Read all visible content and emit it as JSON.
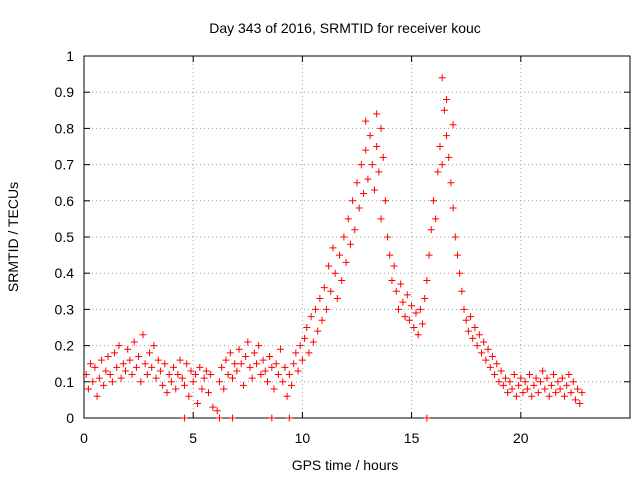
{
  "chart_data": {
    "type": "scatter",
    "title": "Day 343 of 2016, SRMTID for receiver kouc",
    "xlabel": "GPS time / hours",
    "ylabel": "SRMTID / TECUs",
    "xlim": [
      0,
      25
    ],
    "ylim": [
      0,
      1
    ],
    "xticks": [
      0,
      5,
      10,
      15,
      20
    ],
    "xtick_labels": [
      "0",
      "5",
      "10",
      "15",
      "20"
    ],
    "yticks": [
      0,
      0.1,
      0.2,
      0.3,
      0.4,
      0.5,
      0.6,
      0.7,
      0.8,
      0.9,
      1
    ],
    "ytick_labels": [
      "0",
      "0.1",
      "0.2",
      "0.3",
      "0.4",
      "0.5",
      "0.6",
      "0.7",
      "0.8",
      "0.9",
      "1"
    ],
    "grid": true,
    "marker": "+",
    "color": "#ff0000",
    "series": [
      {
        "name": "SRMTID",
        "points": [
          [
            0.1,
            0.12
          ],
          [
            0.2,
            0.08
          ],
          [
            0.3,
            0.15
          ],
          [
            0.4,
            0.1
          ],
          [
            0.5,
            0.14
          ],
          [
            0.6,
            0.06
          ],
          [
            0.7,
            0.11
          ],
          [
            0.8,
            0.16
          ],
          [
            0.9,
            0.09
          ],
          [
            1.0,
            0.13
          ],
          [
            1.1,
            0.17
          ],
          [
            1.2,
            0.12
          ],
          [
            1.3,
            0.1
          ],
          [
            1.4,
            0.18
          ],
          [
            1.5,
            0.14
          ],
          [
            1.6,
            0.2
          ],
          [
            1.7,
            0.11
          ],
          [
            1.8,
            0.15
          ],
          [
            1.9,
            0.13
          ],
          [
            2.0,
            0.19
          ],
          [
            2.1,
            0.16
          ],
          [
            2.2,
            0.12
          ],
          [
            2.3,
            0.21
          ],
          [
            2.4,
            0.14
          ],
          [
            2.5,
            0.17
          ],
          [
            2.6,
            0.1
          ],
          [
            2.7,
            0.23
          ],
          [
            2.8,
            0.15
          ],
          [
            2.9,
            0.12
          ],
          [
            3.0,
            0.18
          ],
          [
            3.1,
            0.14
          ],
          [
            3.2,
            0.2
          ],
          [
            3.3,
            0.11
          ],
          [
            3.4,
            0.16
          ],
          [
            3.5,
            0.13
          ],
          [
            3.6,
            0.09
          ],
          [
            3.7,
            0.15
          ],
          [
            3.8,
            0.07
          ],
          [
            3.9,
            0.12
          ],
          [
            4.0,
            0.1
          ],
          [
            4.1,
            0.14
          ],
          [
            4.2,
            0.08
          ],
          [
            4.3,
            0.12
          ],
          [
            4.4,
            0.16
          ],
          [
            4.5,
            0.11
          ],
          [
            4.6,
            0.09
          ],
          [
            4.7,
            0.15
          ],
          [
            4.8,
            0.06
          ],
          [
            4.9,
            0.13
          ],
          [
            5.0,
            0.1
          ],
          [
            5.1,
            0.12
          ],
          [
            5.2,
            0.04
          ],
          [
            5.3,
            0.14
          ],
          [
            5.4,
            0.08
          ],
          [
            5.5,
            0.11
          ],
          [
            5.6,
            0.13
          ],
          [
            5.7,
            0.07
          ],
          [
            5.8,
            0.12
          ],
          [
            5.9,
            0.03
          ],
          [
            6.1,
            0.02
          ],
          [
            6.2,
            0.1
          ],
          [
            6.3,
            0.14
          ],
          [
            6.4,
            0.08
          ],
          [
            6.5,
            0.16
          ],
          [
            6.6,
            0.12
          ],
          [
            6.7,
            0.18
          ],
          [
            6.8,
            0.11
          ],
          [
            6.9,
            0.15
          ],
          [
            7.0,
            0.13
          ],
          [
            7.1,
            0.19
          ],
          [
            7.2,
            0.15
          ],
          [
            7.3,
            0.09
          ],
          [
            7.4,
            0.17
          ],
          [
            7.5,
            0.21
          ],
          [
            7.6,
            0.14
          ],
          [
            7.7,
            0.11
          ],
          [
            7.8,
            0.18
          ],
          [
            7.9,
            0.15
          ],
          [
            8.0,
            0.2
          ],
          [
            8.1,
            0.12
          ],
          [
            8.2,
            0.16
          ],
          [
            8.3,
            0.13
          ],
          [
            8.4,
            0.1
          ],
          [
            8.5,
            0.17
          ],
          [
            8.6,
            0.14
          ],
          [
            8.7,
            0.08
          ],
          [
            8.8,
            0.15
          ],
          [
            8.9,
            0.12
          ],
          [
            9.0,
            0.19
          ],
          [
            9.1,
            0.1
          ],
          [
            9.2,
            0.14
          ],
          [
            9.3,
            0.06
          ],
          [
            9.4,
            0.12
          ],
          [
            9.5,
            0.09
          ],
          [
            9.6,
            0.15
          ],
          [
            9.7,
            0.18
          ],
          [
            9.8,
            0.13
          ],
          [
            9.9,
            0.2
          ],
          [
            10.0,
            0.16
          ],
          [
            10.1,
            0.22
          ],
          [
            10.2,
            0.25
          ],
          [
            10.3,
            0.18
          ],
          [
            10.4,
            0.28
          ],
          [
            10.5,
            0.21
          ],
          [
            10.6,
            0.3
          ],
          [
            10.7,
            0.24
          ],
          [
            10.8,
            0.33
          ],
          [
            10.9,
            0.27
          ],
          [
            11.0,
            0.36
          ],
          [
            11.1,
            0.3
          ],
          [
            11.2,
            0.42
          ],
          [
            11.3,
            0.35
          ],
          [
            11.4,
            0.47
          ],
          [
            11.5,
            0.4
          ],
          [
            11.6,
            0.33
          ],
          [
            11.7,
            0.45
          ],
          [
            11.8,
            0.38
          ],
          [
            11.9,
            0.5
          ],
          [
            12.0,
            0.43
          ],
          [
            12.1,
            0.55
          ],
          [
            12.2,
            0.48
          ],
          [
            12.3,
            0.6
          ],
          [
            12.4,
            0.52
          ],
          [
            12.5,
            0.65
          ],
          [
            12.6,
            0.58
          ],
          [
            12.7,
            0.7
          ],
          [
            12.8,
            0.62
          ],
          [
            12.9,
            0.74
          ],
          [
            13.0,
            0.66
          ],
          [
            13.1,
            0.78
          ],
          [
            13.2,
            0.7
          ],
          [
            13.3,
            0.63
          ],
          [
            13.4,
            0.75
          ],
          [
            13.5,
            0.68
          ],
          [
            13.6,
            0.55
          ],
          [
            13.7,
            0.72
          ],
          [
            13.8,
            0.6
          ],
          [
            13.9,
            0.5
          ],
          [
            14.0,
            0.45
          ],
          [
            14.1,
            0.38
          ],
          [
            14.2,
            0.42
          ],
          [
            14.3,
            0.35
          ],
          [
            14.4,
            0.3
          ],
          [
            14.5,
            0.37
          ],
          [
            14.6,
            0.32
          ],
          [
            14.7,
            0.28
          ],
          [
            14.8,
            0.34
          ],
          [
            14.9,
            0.27
          ],
          [
            15.0,
            0.31
          ],
          [
            15.1,
            0.25
          ],
          [
            15.2,
            0.29
          ],
          [
            15.3,
            0.23
          ],
          [
            15.4,
            0.3
          ],
          [
            15.5,
            0.26
          ],
          [
            15.6,
            0.33
          ],
          [
            15.7,
            0.38
          ],
          [
            15.8,
            0.45
          ],
          [
            15.9,
            0.52
          ],
          [
            16.0,
            0.6
          ],
          [
            16.1,
            0.55
          ],
          [
            16.2,
            0.68
          ],
          [
            16.3,
            0.75
          ],
          [
            16.4,
            0.7
          ],
          [
            16.5,
            0.85
          ],
          [
            16.6,
            0.78
          ],
          [
            16.7,
            0.72
          ],
          [
            16.8,
            0.65
          ],
          [
            16.9,
            0.58
          ],
          [
            17.0,
            0.5
          ],
          [
            17.1,
            0.45
          ],
          [
            17.2,
            0.4
          ],
          [
            17.3,
            0.35
          ],
          [
            17.4,
            0.3
          ],
          [
            17.5,
            0.27
          ],
          [
            17.6,
            0.24
          ],
          [
            17.7,
            0.28
          ],
          [
            17.8,
            0.22
          ],
          [
            17.9,
            0.25
          ],
          [
            18.0,
            0.2
          ],
          [
            18.1,
            0.23
          ],
          [
            18.2,
            0.18
          ],
          [
            18.3,
            0.21
          ],
          [
            18.4,
            0.16
          ],
          [
            18.5,
            0.19
          ],
          [
            18.6,
            0.14
          ],
          [
            18.7,
            0.17
          ],
          [
            18.8,
            0.12
          ],
          [
            18.9,
            0.15
          ],
          [
            19.0,
            0.1
          ],
          [
            19.1,
            0.13
          ],
          [
            19.2,
            0.09
          ],
          [
            19.3,
            0.11
          ],
          [
            19.4,
            0.07
          ],
          [
            19.5,
            0.1
          ],
          [
            19.6,
            0.08
          ],
          [
            19.7,
            0.12
          ],
          [
            19.8,
            0.06
          ],
          [
            19.9,
            0.09
          ],
          [
            20.0,
            0.11
          ],
          [
            20.1,
            0.07
          ],
          [
            20.2,
            0.1
          ],
          [
            20.3,
            0.08
          ],
          [
            20.4,
            0.12
          ],
          [
            20.5,
            0.06
          ],
          [
            20.6,
            0.09
          ],
          [
            20.7,
            0.11
          ],
          [
            20.8,
            0.07
          ],
          [
            20.9,
            0.1
          ],
          [
            21.0,
            0.13
          ],
          [
            21.1,
            0.08
          ],
          [
            21.2,
            0.11
          ],
          [
            21.3,
            0.06
          ],
          [
            21.4,
            0.09
          ],
          [
            21.5,
            0.12
          ],
          [
            21.6,
            0.07
          ],
          [
            21.7,
            0.1
          ],
          [
            21.8,
            0.08
          ],
          [
            21.9,
            0.11
          ],
          [
            22.0,
            0.06
          ],
          [
            22.1,
            0.09
          ],
          [
            22.2,
            0.12
          ],
          [
            22.3,
            0.07
          ],
          [
            22.4,
            0.1
          ],
          [
            22.5,
            0.05
          ],
          [
            22.6,
            0.08
          ],
          [
            22.7,
            0.04
          ],
          [
            22.8,
            0.07
          ],
          [
            13.4,
            0.84
          ],
          [
            16.4,
            0.94
          ],
          [
            16.6,
            0.88
          ],
          [
            12.9,
            0.82
          ],
          [
            13.6,
            0.8
          ],
          [
            16.9,
            0.81
          ],
          [
            4.6,
            0.0
          ],
          [
            6.2,
            0.0
          ],
          [
            6.8,
            0.0
          ],
          [
            8.6,
            0.0
          ],
          [
            9.4,
            0.0
          ],
          [
            15.7,
            0.0
          ]
        ]
      }
    ]
  }
}
